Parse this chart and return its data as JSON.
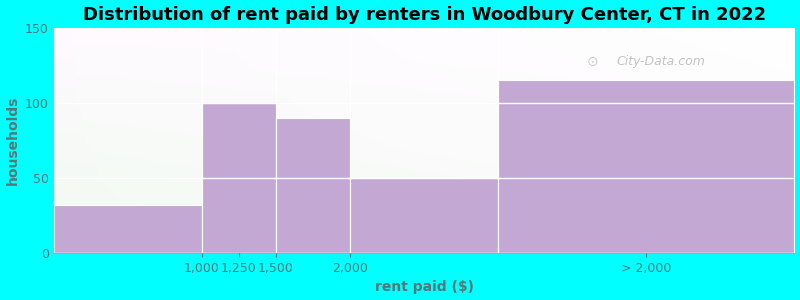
{
  "title": "Distribution of rent paid by renters in Woodbury Center, CT in 2022",
  "xlabel": "rent paid ($)",
  "ylabel": "households",
  "background_color": "#00FFFF",
  "bar_color": "#c4a8d4",
  "ylim": [
    0,
    150
  ],
  "yticks": [
    0,
    50,
    100,
    150
  ],
  "bars": [
    {
      "label": "1,000",
      "x_left": 0.0,
      "x_right": 1.0,
      "height": 32
    },
    {
      "label": "1,250",
      "x_left": 1.0,
      "x_right": 1.5,
      "height": 100
    },
    {
      "label": "1,500",
      "x_left": 1.5,
      "x_right": 2.0,
      "height": 90
    },
    {
      "label": "2,000",
      "x_left": 2.0,
      "x_right": 3.0,
      "height": 50
    },
    {
      "label": "> 2,000",
      "x_left": 3.0,
      "x_right": 5.0,
      "height": 115
    }
  ],
  "xtick_positions": [
    0.5,
    1.0,
    1.5,
    2.0,
    3.0,
    5.0
  ],
  "xtick_labels": [
    "",
    "1,000",
    "1,250",
    "1,500",
    "2,000",
    "> 2,000"
  ],
  "xlim": [
    0.0,
    5.0
  ],
  "title_fontsize": 13,
  "label_fontsize": 10,
  "tick_fontsize": 9,
  "tick_color": "#557777",
  "watermark_text": "City-Data.com",
  "grid_color": "#ffffff"
}
